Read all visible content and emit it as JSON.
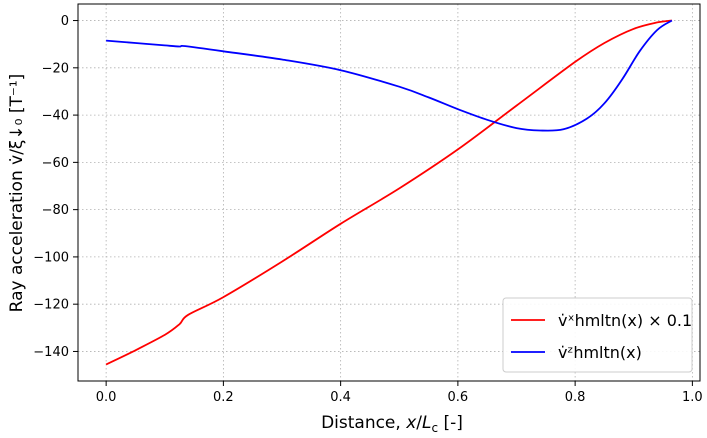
{
  "chart_data": {
    "type": "line",
    "title": "",
    "xlabel": "Distance, x/L_c  [-]",
    "ylabel": "Ray acceleration  v̇/ξ↓₀  [T⁻¹]",
    "xlim": [
      -0.048,
      1.013
    ],
    "ylim": [
      -152.5,
      7
    ],
    "xticks": [
      0.0,
      0.2,
      0.4,
      0.6,
      0.8,
      1.0
    ],
    "xtick_labels": [
      "0.0",
      "0.2",
      "0.4",
      "0.6",
      "0.8",
      "1.0"
    ],
    "yticks": [
      0,
      -20,
      -40,
      -60,
      -80,
      -100,
      -120,
      -140
    ],
    "ytick_labels": [
      "0",
      "−20",
      "−40",
      "−60",
      "−80",
      "−100",
      "−120",
      "−140"
    ],
    "grid": true,
    "legend_position": "bottom-right",
    "series": [
      {
        "name": "v̇ˣ_hmltn(x) × 0.1",
        "color": "#ff0000",
        "x": [
          0.0,
          0.05,
          0.1,
          0.125,
          0.14,
          0.2,
          0.3,
          0.4,
          0.5,
          0.6,
          0.7,
          0.8,
          0.85,
          0.9,
          0.94,
          0.965
        ],
        "y": [
          -145.5,
          -139.5,
          -133.0,
          -128.5,
          -124.5,
          -117.0,
          -102.0,
          -86.0,
          -71.0,
          -54.5,
          -36.0,
          -17.5,
          -9.5,
          -3.5,
          -0.8,
          0.0
        ]
      },
      {
        "name": "v̇ᶻ_hmltn(x)",
        "color": "#0000ff",
        "x": [
          0.0,
          0.05,
          0.1,
          0.125,
          0.135,
          0.2,
          0.3,
          0.4,
          0.5,
          0.55,
          0.6,
          0.65,
          0.7,
          0.74,
          0.78,
          0.82,
          0.85,
          0.88,
          0.91,
          0.94,
          0.965
        ],
        "y": [
          -8.5,
          -9.5,
          -10.5,
          -11.0,
          -10.8,
          -13.0,
          -16.5,
          -21.0,
          -28.0,
          -32.5,
          -37.5,
          -42.0,
          -45.5,
          -46.5,
          -46.0,
          -41.5,
          -35.0,
          -25.0,
          -13.0,
          -4.0,
          0.0
        ]
      }
    ]
  },
  "legend": {
    "series0_label": "v̇ˣhmltn(x) × 0.1",
    "series1_label": "v̇ᶻhmltn(x)"
  },
  "axes": {
    "xlabel_main": "Distance, ",
    "xlabel_var": "x",
    "xlabel_slash": "/",
    "xlabel_L": "L",
    "xlabel_sub": "c",
    "xlabel_unit": "  [-]",
    "ylabel_text": "Ray acceleration  v̇/ξ↓₀  [T⁻¹]"
  }
}
